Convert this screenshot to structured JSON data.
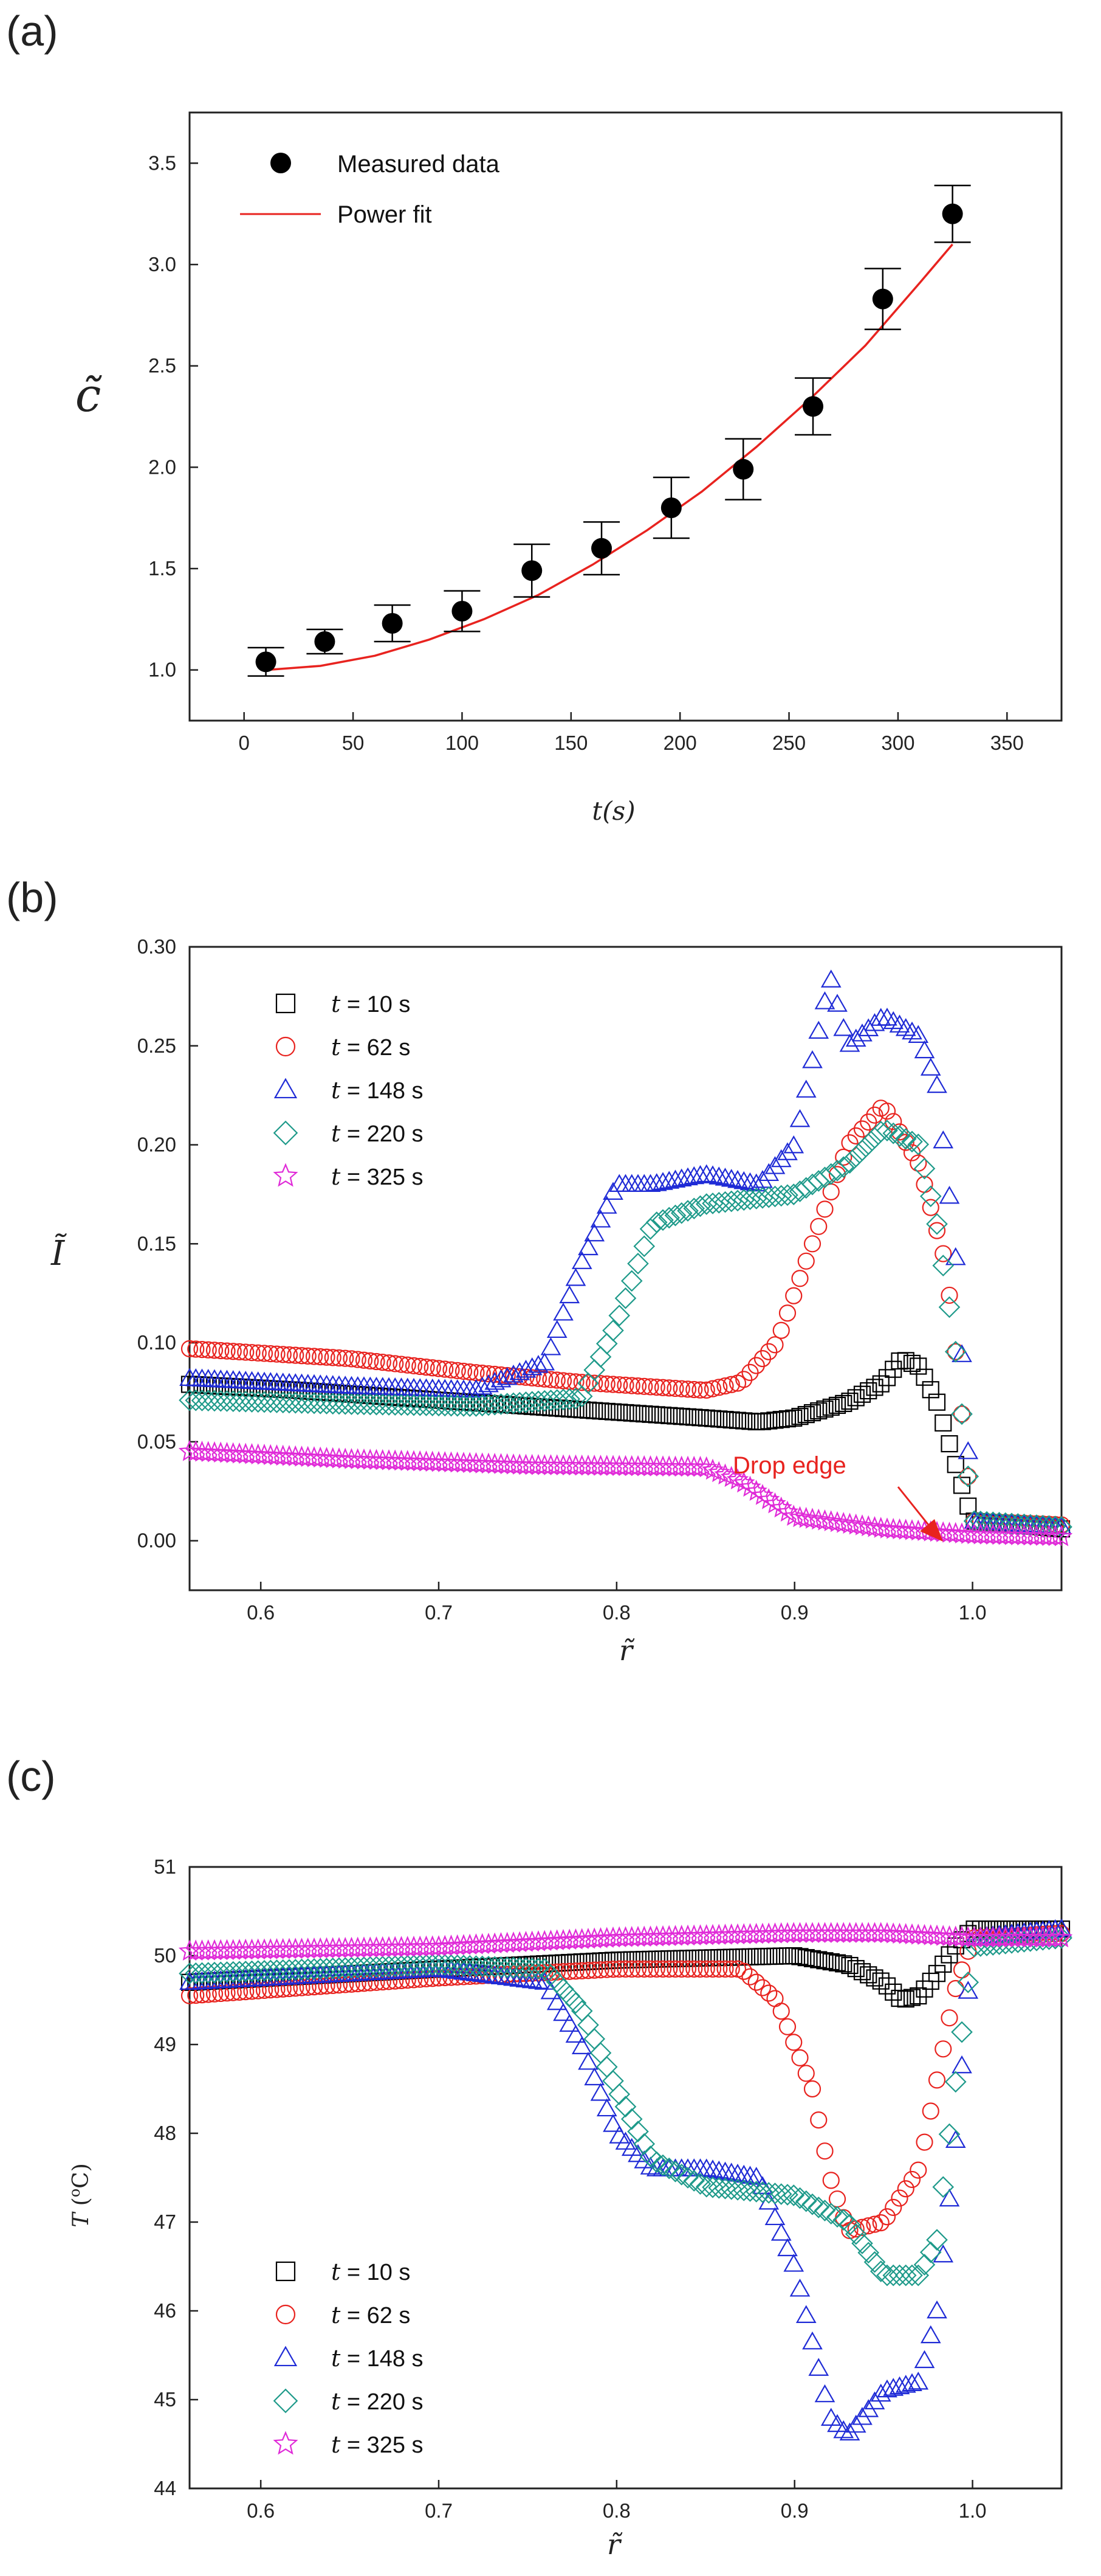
{
  "chart_data": [
    {
      "panel": "(a)",
      "type": "scatter",
      "xlabel": "t(s)",
      "ylabel": "c̃",
      "xlim": [
        -25,
        375
      ],
      "ylim": [
        0.75,
        3.75
      ],
      "xticks": [
        0,
        50,
        100,
        150,
        200,
        250,
        300,
        350
      ],
      "yticks": [
        1.0,
        1.5,
        2.0,
        2.5,
        3.0,
        3.5
      ],
      "series": [
        {
          "name": "Measured data",
          "marker": "circle",
          "color": "#000000",
          "x": [
            10,
            37,
            68,
            100,
            132,
            164,
            196,
            229,
            261,
            293,
            325
          ],
          "y": [
            1.04,
            1.14,
            1.23,
            1.29,
            1.49,
            1.6,
            1.8,
            1.99,
            2.3,
            2.83,
            3.25
          ],
          "err": [
            0.07,
            0.06,
            0.09,
            0.1,
            0.13,
            0.13,
            0.15,
            0.15,
            0.14,
            0.15,
            0.14
          ]
        },
        {
          "name": "Power fit",
          "marker": "line",
          "color": "#e8231f",
          "x": [
            10,
            35,
            60,
            85,
            110,
            135,
            160,
            185,
            210,
            235,
            260,
            285,
            310,
            325
          ],
          "y": [
            1.0,
            1.02,
            1.07,
            1.15,
            1.25,
            1.37,
            1.52,
            1.69,
            1.88,
            2.1,
            2.34,
            2.6,
            2.91,
            3.1
          ]
        }
      ]
    },
    {
      "panel": "(b)",
      "type": "scatter",
      "xlabel": "r̃",
      "ylabel": "Ĩ",
      "xlim": [
        0.56,
        1.05
      ],
      "ylim": [
        -0.025,
        0.3
      ],
      "xticks": [
        0.6,
        0.7,
        0.8,
        0.9,
        1.0
      ],
      "xtick_labels": [
        "0.6",
        "0.7",
        "0.8",
        "0.9",
        "1.0"
      ],
      "yticks": [
        0.0,
        0.05,
        0.1,
        0.15,
        0.2,
        0.25,
        0.3
      ],
      "ytick_labels": [
        "0.00",
        "0.05",
        "0.10",
        "0.15",
        "0.20",
        "0.25",
        "0.30"
      ],
      "annotation": {
        "text": "Drop edge",
        "color": "#e8231f",
        "x": 0.965,
        "y": 0.01
      },
      "series": [
        {
          "name": "t = 10 s",
          "prefix": "t",
          "suffix": " = 10 s",
          "marker": "square",
          "color": "#000000",
          "x": [
            0.56,
            0.62,
            0.7,
            0.75,
            0.8,
            0.85,
            0.88,
            0.9,
            0.93,
            0.95,
            0.96,
            0.97,
            0.98,
            0.99,
            1.0,
            1.05
          ],
          "y": [
            0.079,
            0.076,
            0.071,
            0.068,
            0.065,
            0.062,
            0.06,
            0.062,
            0.07,
            0.08,
            0.092,
            0.088,
            0.07,
            0.04,
            0.01,
            0.006
          ]
        },
        {
          "name": "t = 62 s",
          "prefix": "t",
          "suffix": " = 62 s",
          "marker": "circle",
          "color": "#e8231f",
          "x": [
            0.56,
            0.65,
            0.72,
            0.78,
            0.85,
            0.87,
            0.89,
            0.91,
            0.93,
            0.95,
            0.97,
            0.985,
            0.99,
            1.0,
            1.05
          ],
          "y": [
            0.097,
            0.092,
            0.085,
            0.08,
            0.076,
            0.08,
            0.1,
            0.15,
            0.2,
            0.22,
            0.19,
            0.14,
            0.1,
            0.01,
            0.008
          ]
        },
        {
          "name": "t = 148 s",
          "prefix": "t",
          "suffix": " = 148 s",
          "marker": "triangle",
          "color": "#1f2bd6",
          "x": [
            0.56,
            0.65,
            0.72,
            0.76,
            0.78,
            0.8,
            0.82,
            0.85,
            0.88,
            0.9,
            0.92,
            0.93,
            0.95,
            0.97,
            0.98,
            0.99,
            1.0,
            1.05
          ],
          "y": [
            0.082,
            0.078,
            0.076,
            0.09,
            0.14,
            0.18,
            0.18,
            0.185,
            0.18,
            0.2,
            0.285,
            0.25,
            0.265,
            0.255,
            0.23,
            0.15,
            0.01,
            0.007
          ]
        },
        {
          "name": "t = 220 s",
          "prefix": "t",
          "suffix": " = 220 s",
          "marker": "diamond",
          "color": "#1e9a8a",
          "x": [
            0.56,
            0.65,
            0.72,
            0.78,
            0.8,
            0.82,
            0.85,
            0.9,
            0.93,
            0.95,
            0.97,
            0.98,
            0.99,
            1.0,
            1.05
          ],
          "y": [
            0.071,
            0.069,
            0.068,
            0.072,
            0.11,
            0.16,
            0.17,
            0.175,
            0.19,
            0.208,
            0.2,
            0.16,
            0.1,
            0.01,
            0.007
          ]
        },
        {
          "name": "t = 325 s",
          "prefix": "t",
          "suffix": " = 325 s",
          "marker": "star",
          "color": "#e02bd8",
          "x": [
            0.56,
            0.65,
            0.75,
            0.85,
            0.87,
            0.9,
            0.95,
            1.0,
            1.05
          ],
          "y": [
            0.045,
            0.041,
            0.038,
            0.037,
            0.03,
            0.012,
            0.006,
            0.003,
            0.002
          ]
        }
      ]
    },
    {
      "panel": "(c)",
      "type": "scatter",
      "xlabel": "r̃",
      "ylabel_main": "T",
      "ylabel_unit": " (",
      "ylabel_sup": "o",
      "ylabel_end": "C)",
      "xlim": [
        0.56,
        1.05
      ],
      "ylim": [
        44,
        51
      ],
      "xticks": [
        0.6,
        0.7,
        0.8,
        0.9,
        1.0
      ],
      "xtick_labels": [
        "0.6",
        "0.7",
        "0.8",
        "0.9",
        "1.0"
      ],
      "yticks": [
        44,
        45,
        46,
        47,
        48,
        49,
        50,
        51
      ],
      "series": [
        {
          "name": "t = 10 s",
          "prefix": "t",
          "suffix": " = 10 s",
          "marker": "square",
          "color": "#000000",
          "x": [
            0.56,
            0.7,
            0.8,
            0.9,
            0.93,
            0.95,
            0.96,
            0.97,
            0.98,
            0.99,
            1.0,
            1.05
          ],
          "y": [
            49.7,
            49.85,
            49.95,
            50.0,
            49.9,
            49.7,
            49.5,
            49.55,
            49.8,
            50.1,
            50.3,
            50.3
          ]
        },
        {
          "name": "t = 62 s",
          "prefix": "t",
          "suffix": " = 62 s",
          "marker": "circle",
          "color": "#e8231f",
          "x": [
            0.56,
            0.7,
            0.8,
            0.87,
            0.89,
            0.91,
            0.92,
            0.93,
            0.95,
            0.97,
            0.98,
            0.99,
            1.0,
            1.05
          ],
          "y": [
            49.55,
            49.75,
            49.85,
            49.85,
            49.5,
            48.5,
            47.5,
            46.9,
            47.0,
            47.6,
            48.6,
            49.6,
            50.2,
            50.25
          ]
        },
        {
          "name": "t = 148 s",
          "prefix": "t",
          "suffix": " = 148 s",
          "marker": "triangle",
          "color": "#1f2bd6",
          "x": [
            0.56,
            0.7,
            0.76,
            0.78,
            0.8,
            0.82,
            0.85,
            0.88,
            0.9,
            0.92,
            0.93,
            0.95,
            0.97,
            0.98,
            0.99,
            1.0,
            1.05
          ],
          "y": [
            49.7,
            49.85,
            49.7,
            49.0,
            48.0,
            47.6,
            47.6,
            47.5,
            46.5,
            44.8,
            44.6,
            45.1,
            45.2,
            46.0,
            47.8,
            50.2,
            50.3
          ]
        },
        {
          "name": "t = 220 s",
          "prefix": "t",
          "suffix": " = 220 s",
          "marker": "diamond",
          "color": "#1e9a8a",
          "x": [
            0.56,
            0.7,
            0.76,
            0.78,
            0.8,
            0.82,
            0.85,
            0.9,
            0.93,
            0.95,
            0.97,
            0.98,
            0.99,
            1.0,
            1.05
          ],
          "y": [
            49.8,
            49.9,
            49.85,
            49.4,
            48.5,
            47.7,
            47.4,
            47.3,
            47.0,
            46.4,
            46.4,
            46.8,
            48.5,
            50.1,
            50.2
          ]
        },
        {
          "name": "t = 325 s",
          "prefix": "t",
          "suffix": " = 325 s",
          "marker": "star",
          "color": "#e02bd8",
          "x": [
            0.56,
            0.7,
            0.8,
            0.9,
            0.95,
            1.0,
            1.05
          ],
          "y": [
            50.05,
            50.1,
            50.2,
            50.25,
            50.25,
            50.2,
            50.2
          ]
        }
      ]
    }
  ]
}
